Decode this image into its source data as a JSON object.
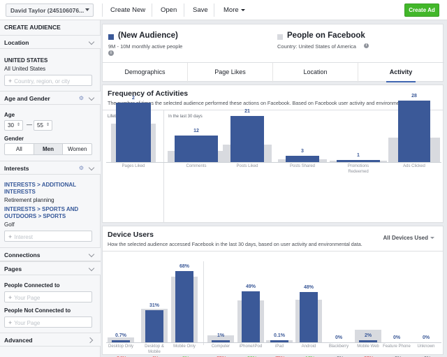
{
  "topbar": {
    "account": "David Taylor (245106076...",
    "create_new": "Create New",
    "open": "Open",
    "save": "Save",
    "more": "More",
    "create_ad": "Create Ad"
  },
  "sidebar": {
    "title": "CREATE AUDIENCE",
    "location": {
      "label": "Location",
      "country": "UNITED STATES",
      "scope": "All United States",
      "placeholder": "Country, region, or city"
    },
    "age_gender": {
      "label": "Age and Gender",
      "age_label": "Age",
      "age_min": "30",
      "age_max": "55",
      "dash": "—",
      "gender_label": "Gender",
      "genders": [
        "All",
        "Men",
        "Women"
      ],
      "selected": "Men"
    },
    "interests": {
      "label": "Interests",
      "items": [
        {
          "path": "INTERESTS > ADDITIONAL INTERESTS",
          "value": "Retirement planning"
        },
        {
          "path": "INTERESTS > SPORTS AND OUTDOORS > SPORTS",
          "value": "Golf"
        }
      ],
      "placeholder": "Interest"
    },
    "connections": "Connections",
    "pages": "Pages",
    "people_connected": "People Connected to",
    "people_not_connected": "People Not Connected to",
    "page_placeholder": "Your Page",
    "advanced": "Advanced"
  },
  "audience": {
    "name": "(New Audience)",
    "size": "9M - 10M monthly active people",
    "compare_name": "People on Facebook",
    "compare_sub": "Country: United States of America",
    "info": "i",
    "primary_color": "#3b5998",
    "compare_color": "#d8dadf"
  },
  "tabs": [
    "Demographics",
    "Page Likes",
    "Location",
    "Activity"
  ],
  "frequency": {
    "title": "Frequency of Activities",
    "description": "The number of times the selected audience performed these actions on Facebook. Based on Facebook user activity and environmenta...",
    "lifetime_label": "Lifetime",
    "last30_label": "In the last 30 days"
  },
  "device": {
    "title": "Device Users",
    "description": "How the selected audience accessed Facebook in the last 30 days, based on user activity and environmental data.",
    "dropdown": "All Devices Used"
  },
  "chart_data": [
    {
      "type": "bar",
      "title": "Frequency of Activities",
      "series": [
        {
          "name": "Selected audience",
          "values": [
            2,
            12,
            21,
            3,
            1,
            28
          ]
        },
        {
          "name": "People on Facebook",
          "values": [
            1.3,
            5,
            7.9,
            1.4,
            0.7,
            11
          ]
        }
      ],
      "categories": [
        "Pages Liked",
        "Comments",
        "Posts Liked",
        "Posts Shared",
        "Promotions Redeemed",
        "Ads Clicked"
      ],
      "labels": [
        "2",
        "12",
        "21",
        "3",
        "1",
        "28"
      ]
    },
    {
      "type": "bar",
      "title": "Device Users",
      "categories": [
        "Desktop Only",
        "Desktop & Mobile",
        "Mobile Only",
        "Computer",
        "iPhone/iPod",
        "iPad",
        "Android",
        "Blackberry",
        "Mobile Web",
        "Feature Phone",
        "Unknown"
      ],
      "series": [
        {
          "name": "Selected audience",
          "values": [
            0.7,
            31,
            68,
            1,
            49,
            0.1,
            48,
            0,
            2,
            0,
            0
          ]
        },
        {
          "name": "People on Facebook",
          "values": [
            4.4,
            32,
            63,
            6.7,
            40,
            0.4,
            41,
            0,
            12,
            0,
            0
          ]
        }
      ],
      "labels": [
        "0.7%",
        "31%",
        "68%",
        "1%",
        "49%",
        "0.1%",
        "48%",
        "0%",
        "2%",
        "0%",
        "0%"
      ],
      "deltas": [
        "-84%",
        "-4%",
        "+8%",
        "-85%",
        "+23%",
        "-75%",
        "+17%",
        "+0%",
        "-83%",
        "+0%",
        "+0%"
      ],
      "ylim": [
        0,
        70
      ]
    }
  ]
}
